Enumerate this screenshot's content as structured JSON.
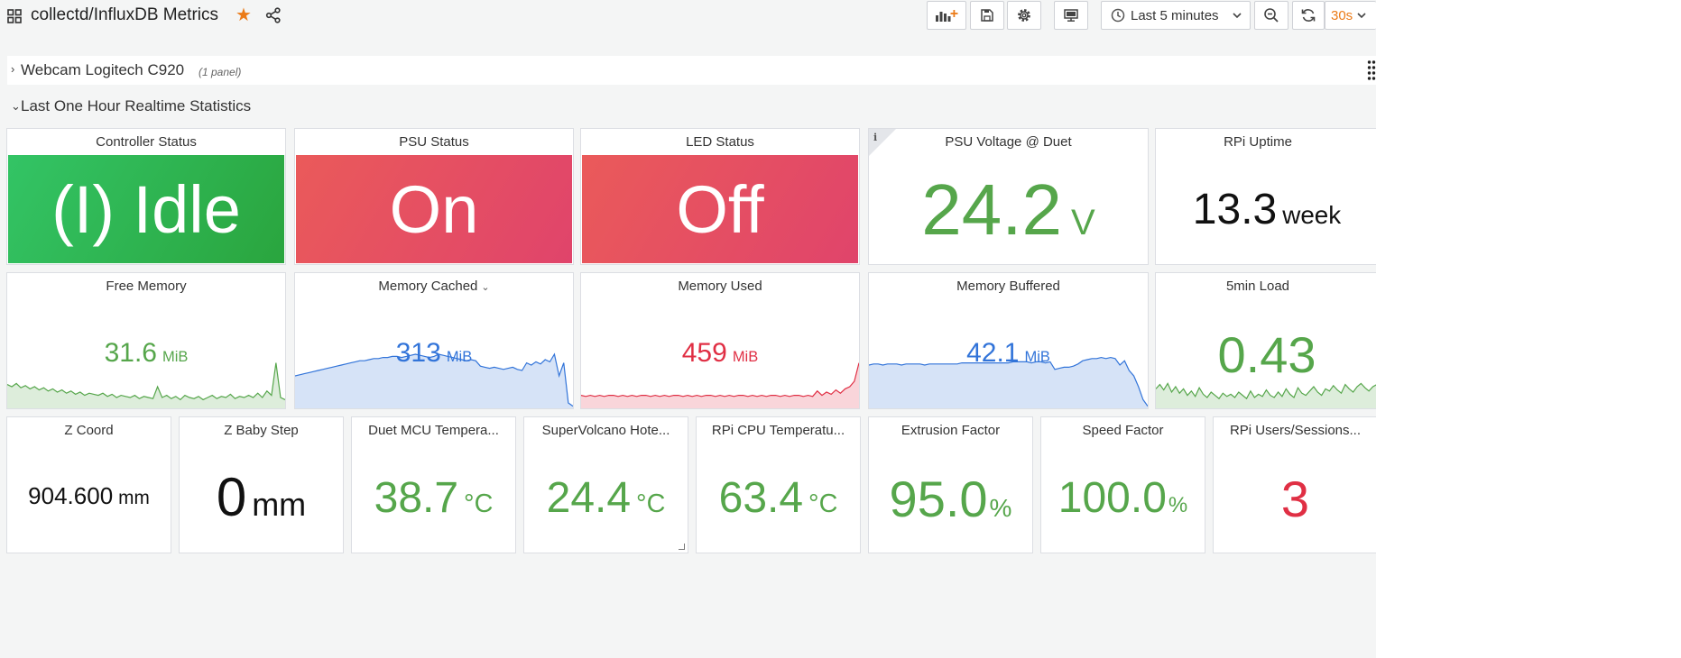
{
  "header": {
    "title": "collectd/InfluxDB Metrics",
    "time_range": "Last 5 minutes",
    "refresh_interval": "30s"
  },
  "rows": [
    {
      "title": "Webcam Logitech C920",
      "panel_count": "(1 panel)",
      "collapsed": true
    },
    {
      "title": "Last One Hour Realtime Statistics",
      "collapsed": false
    }
  ],
  "stat_panels": {
    "controller_status": {
      "title": "Controller Status",
      "value": "(I) Idle",
      "color": "#2fb14d"
    },
    "psu_status": {
      "title": "PSU Status",
      "value": "On",
      "color": "#e4505f"
    },
    "led_status": {
      "title": "LED Status",
      "value": "Off",
      "color": "#e4505f"
    },
    "psu_voltage": {
      "title": "PSU Voltage @ Duet",
      "value": "24.2",
      "unit": "V",
      "color": "#56a64b"
    },
    "rpi_uptime": {
      "title": "RPi Uptime",
      "value": "13.3",
      "unit": "week"
    },
    "free_memory": {
      "title": "Free Memory",
      "value": "31.6",
      "unit": "MiB",
      "color": "#56a64b"
    },
    "memory_cached": {
      "title": "Memory Cached",
      "value": "313",
      "unit": "MiB",
      "color": "#3274d9"
    },
    "memory_used": {
      "title": "Memory Used",
      "value": "459",
      "unit": "MiB",
      "color": "#e02f44"
    },
    "memory_buffered": {
      "title": "Memory Buffered",
      "value": "42.1",
      "unit": "MiB",
      "color": "#3274d9"
    },
    "load_5min": {
      "title": "5min Load",
      "value": "0.43",
      "color": "#56a64b"
    },
    "z_coord": {
      "title": "Z Coord",
      "value": "904.600",
      "unit": "mm"
    },
    "z_baby_step": {
      "title": "Z Baby Step",
      "value": "0",
      "unit": "mm"
    },
    "duet_mcu_temp": {
      "title": "Duet MCU Tempera...",
      "value": "38.7",
      "unit": "°C",
      "color": "#56a64b"
    },
    "supervolcano_temp": {
      "title": "SuperVolcano Hote...",
      "value": "24.4",
      "unit": "°C",
      "color": "#56a64b"
    },
    "rpi_cpu_temp": {
      "title": "RPi CPU Temperatu...",
      "value": "63.4",
      "unit": "°C",
      "color": "#56a64b"
    },
    "extrusion_factor": {
      "title": "Extrusion Factor",
      "value": "95.0",
      "unit": "%",
      "color": "#56a64b"
    },
    "speed_factor": {
      "title": "Speed Factor",
      "value": "100.0",
      "unit": "%",
      "color": "#56a64b"
    },
    "rpi_users": {
      "title": "RPi Users/Sessions...",
      "value": "3",
      "color": "#e02f44"
    }
  },
  "sparklines": {
    "free_memory": {
      "color": "#56a64b",
      "values": [
        0.22,
        0.2,
        0.23,
        0.19,
        0.21,
        0.18,
        0.2,
        0.17,
        0.19,
        0.16,
        0.18,
        0.15,
        0.17,
        0.14,
        0.16,
        0.13,
        0.15,
        0.12,
        0.14,
        0.13,
        0.12,
        0.14,
        0.11,
        0.13,
        0.1,
        0.12,
        0.11,
        0.1,
        0.12,
        0.09,
        0.11,
        0.1,
        0.09,
        0.2,
        0.1,
        0.12,
        0.09,
        0.11,
        0.08,
        0.12,
        0.1,
        0.09,
        0.11,
        0.08,
        0.1,
        0.12,
        0.09,
        0.11,
        0.1,
        0.13,
        0.09,
        0.11,
        0.1,
        0.12,
        0.1,
        0.14,
        0.1,
        0.16,
        0.12,
        0.42,
        0.1,
        0.08
      ]
    },
    "memory_cached": {
      "color": "#3274d9",
      "values": [
        0.3,
        0.31,
        0.32,
        0.33,
        0.34,
        0.35,
        0.36,
        0.37,
        0.38,
        0.39,
        0.4,
        0.41,
        0.42,
        0.43,
        0.44,
        0.44,
        0.45,
        0.46,
        0.46,
        0.47,
        0.47,
        0.48,
        0.48,
        0.47,
        0.48,
        0.49,
        0.5,
        0.49,
        0.48,
        0.47,
        0.48,
        0.5,
        0.49,
        0.48,
        0.47,
        0.46,
        0.45,
        0.44,
        0.45,
        0.44,
        0.39,
        0.38,
        0.37,
        0.38,
        0.37,
        0.36,
        0.37,
        0.38,
        0.36,
        0.35,
        0.42,
        0.4,
        0.43,
        0.41,
        0.45,
        0.43,
        0.5,
        0.3,
        0.42,
        0.05,
        0.02
      ]
    },
    "memory_used": {
      "color": "#e02f44",
      "values": [
        0.12,
        0.11,
        0.12,
        0.11,
        0.12,
        0.11,
        0.12,
        0.12,
        0.11,
        0.12,
        0.11,
        0.12,
        0.11,
        0.12,
        0.12,
        0.11,
        0.12,
        0.11,
        0.12,
        0.11,
        0.12,
        0.12,
        0.11,
        0.12,
        0.11,
        0.12,
        0.11,
        0.12,
        0.12,
        0.11,
        0.12,
        0.11,
        0.12,
        0.11,
        0.12,
        0.12,
        0.11,
        0.12,
        0.11,
        0.12,
        0.11,
        0.12,
        0.12,
        0.11,
        0.12,
        0.11,
        0.12,
        0.12,
        0.11,
        0.12,
        0.11,
        0.16,
        0.12,
        0.15,
        0.13,
        0.17,
        0.14,
        0.18,
        0.2,
        0.25,
        0.42
      ]
    },
    "memory_buffered": {
      "color": "#3274d9",
      "values": [
        0.4,
        0.41,
        0.41,
        0.4,
        0.41,
        0.41,
        0.41,
        0.4,
        0.41,
        0.41,
        0.41,
        0.41,
        0.4,
        0.41,
        0.41,
        0.41,
        0.41,
        0.41,
        0.41,
        0.41,
        0.42,
        0.42,
        0.42,
        0.42,
        0.42,
        0.42,
        0.42,
        0.42,
        0.42,
        0.42,
        0.42,
        0.43,
        0.43,
        0.43,
        0.43,
        0.42,
        0.43,
        0.43,
        0.42,
        0.43,
        0.36,
        0.37,
        0.38,
        0.38,
        0.39,
        0.41,
        0.44,
        0.45,
        0.46,
        0.46,
        0.47,
        0.46,
        0.47,
        0.46,
        0.4,
        0.44,
        0.35,
        0.3,
        0.2,
        0.08,
        0.02
      ]
    },
    "load_5min": {
      "color": "#56a64b",
      "values": [
        0.18,
        0.22,
        0.17,
        0.23,
        0.15,
        0.2,
        0.14,
        0.18,
        0.12,
        0.16,
        0.11,
        0.19,
        0.13,
        0.1,
        0.15,
        0.12,
        0.09,
        0.14,
        0.11,
        0.13,
        0.1,
        0.15,
        0.12,
        0.09,
        0.16,
        0.1,
        0.13,
        0.11,
        0.17,
        0.12,
        0.1,
        0.15,
        0.11,
        0.18,
        0.13,
        0.1,
        0.19,
        0.14,
        0.12,
        0.16,
        0.2,
        0.15,
        0.12,
        0.18,
        0.16,
        0.21,
        0.17,
        0.14,
        0.22,
        0.18,
        0.15,
        0.2,
        0.23,
        0.19,
        0.16,
        0.2,
        0.22,
        0.18,
        0.2,
        0.19
      ]
    }
  }
}
